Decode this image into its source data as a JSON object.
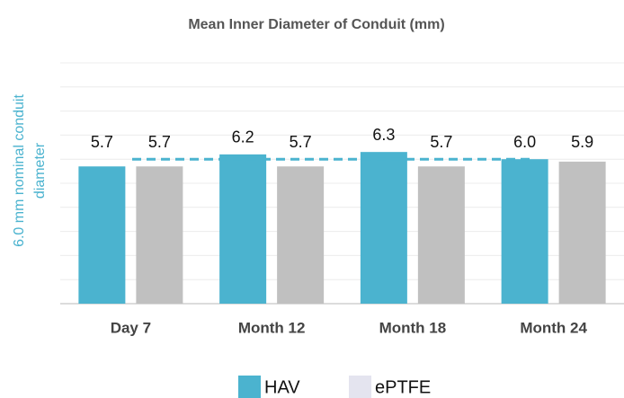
{
  "chart_data": {
    "type": "bar",
    "title": "Mean Inner Diameter of Conduit (mm)",
    "categories": [
      "Day 7",
      "Month 12",
      "Month 18",
      "Month 24"
    ],
    "series": [
      {
        "name": "HAV",
        "color": "#4bb3cf",
        "legend_color": "#4bb3cf",
        "values": [
          5.7,
          6.2,
          6.3,
          6.0
        ],
        "value_labels": [
          "5.7",
          "6.2",
          "6.3",
          "6.0"
        ]
      },
      {
        "name": "ePTFE",
        "color": "#c0c0c0",
        "legend_color": "#e4e4ef",
        "values": [
          5.7,
          5.7,
          5.7,
          5.9
        ],
        "value_labels": [
          "5.7",
          "5.7",
          "5.7",
          "5.9"
        ]
      }
    ],
    "reference_line": {
      "value": 6.0,
      "color": "#4bb3cf",
      "label_lines": [
        "6.0 mm nominal conduit",
        "diameter"
      ]
    },
    "ylim": [
      0,
      10
    ],
    "yticks": [
      0,
      1,
      2,
      3,
      4,
      5,
      6,
      7,
      8,
      9,
      10
    ],
    "grid": true,
    "legend": "bottom"
  }
}
